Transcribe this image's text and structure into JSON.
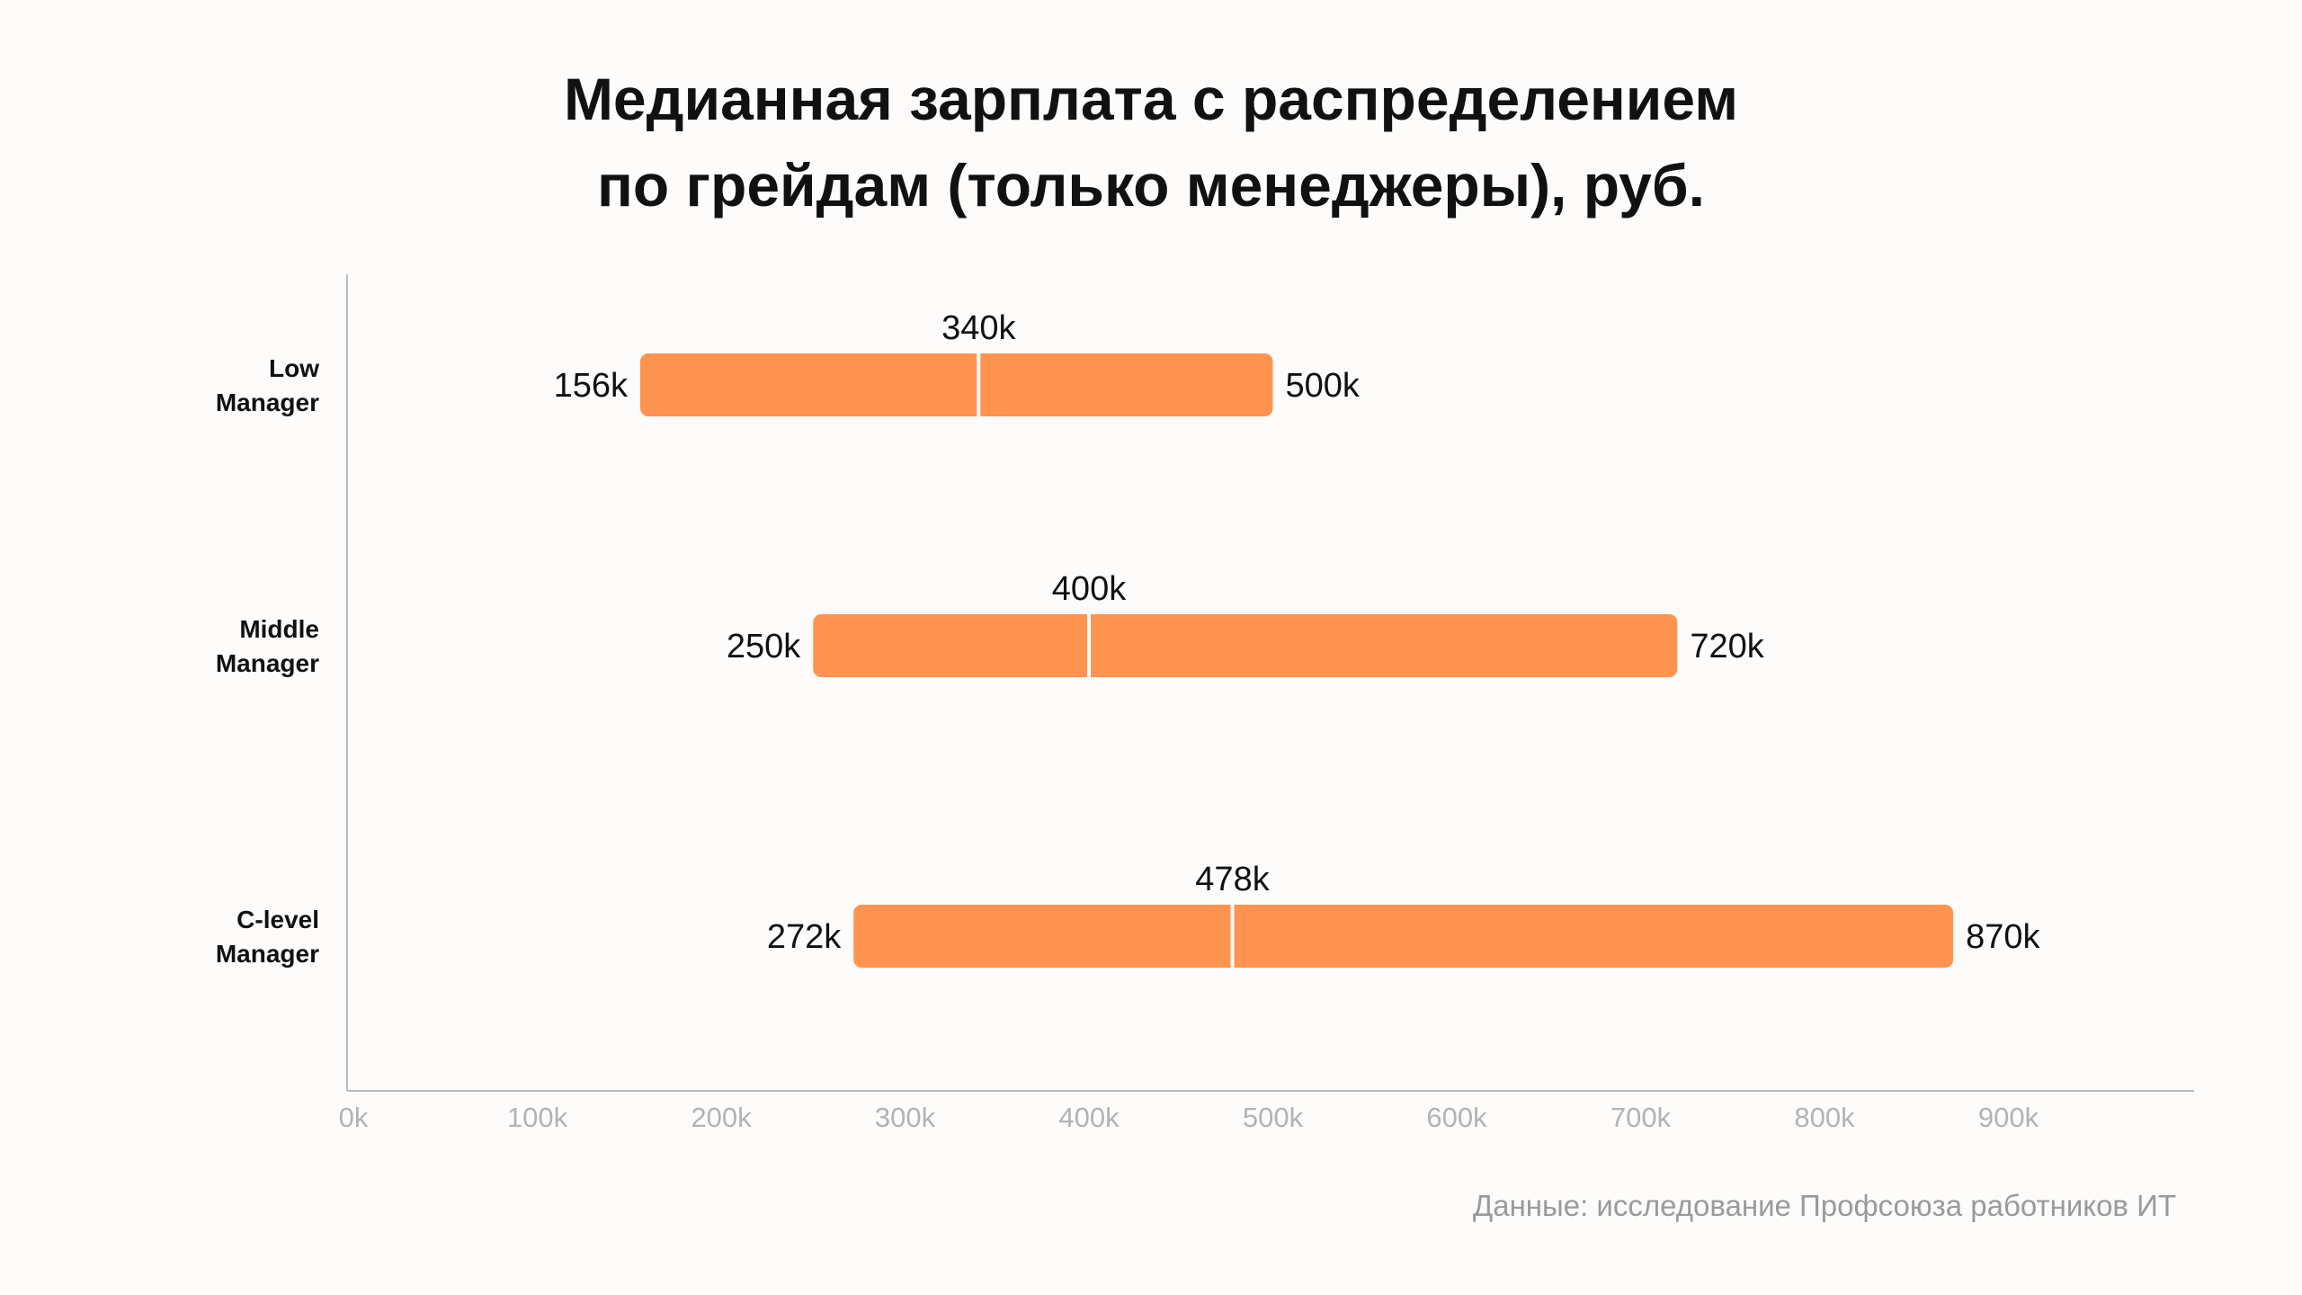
{
  "title": {
    "line1": "Медианная зарплата с распределением",
    "line2": "по грейдам (только менеджеры), руб."
  },
  "source": "Данные: исследование Профсоюза работников ИТ",
  "colors": {
    "bar": "#ff9350",
    "median": "#ffffff",
    "axis": "#bdbdbd",
    "tick_text": "#b3b3b3",
    "text": "#111111"
  },
  "chart_data": {
    "type": "range-bar",
    "orientation": "horizontal",
    "categories": [
      [
        "Low",
        "Manager"
      ],
      [
        "Middle",
        "Manager"
      ],
      [
        "C-level",
        "Manager"
      ]
    ],
    "ranges": [
      {
        "min": 156,
        "median": 340,
        "max": 500,
        "min_label": "156k",
        "median_label": "340k",
        "max_label": "500k"
      },
      {
        "min": 250,
        "median": 400,
        "max": 720,
        "min_label": "250k",
        "median_label": "400k",
        "max_label": "720k"
      },
      {
        "min": 272,
        "median": 478,
        "max": 870,
        "min_label": "272k",
        "median_label": "478k",
        "max_label": "870k"
      }
    ],
    "x_ticks": [
      0,
      100,
      200,
      300,
      400,
      500,
      600,
      700,
      800,
      900
    ],
    "x_tick_labels": [
      "0k",
      "100k",
      "200k",
      "300k",
      "400k",
      "500k",
      "600k",
      "700k",
      "800k",
      "900k"
    ],
    "xlim": [
      0,
      1000
    ],
    "grid": false,
    "legend": "none"
  }
}
